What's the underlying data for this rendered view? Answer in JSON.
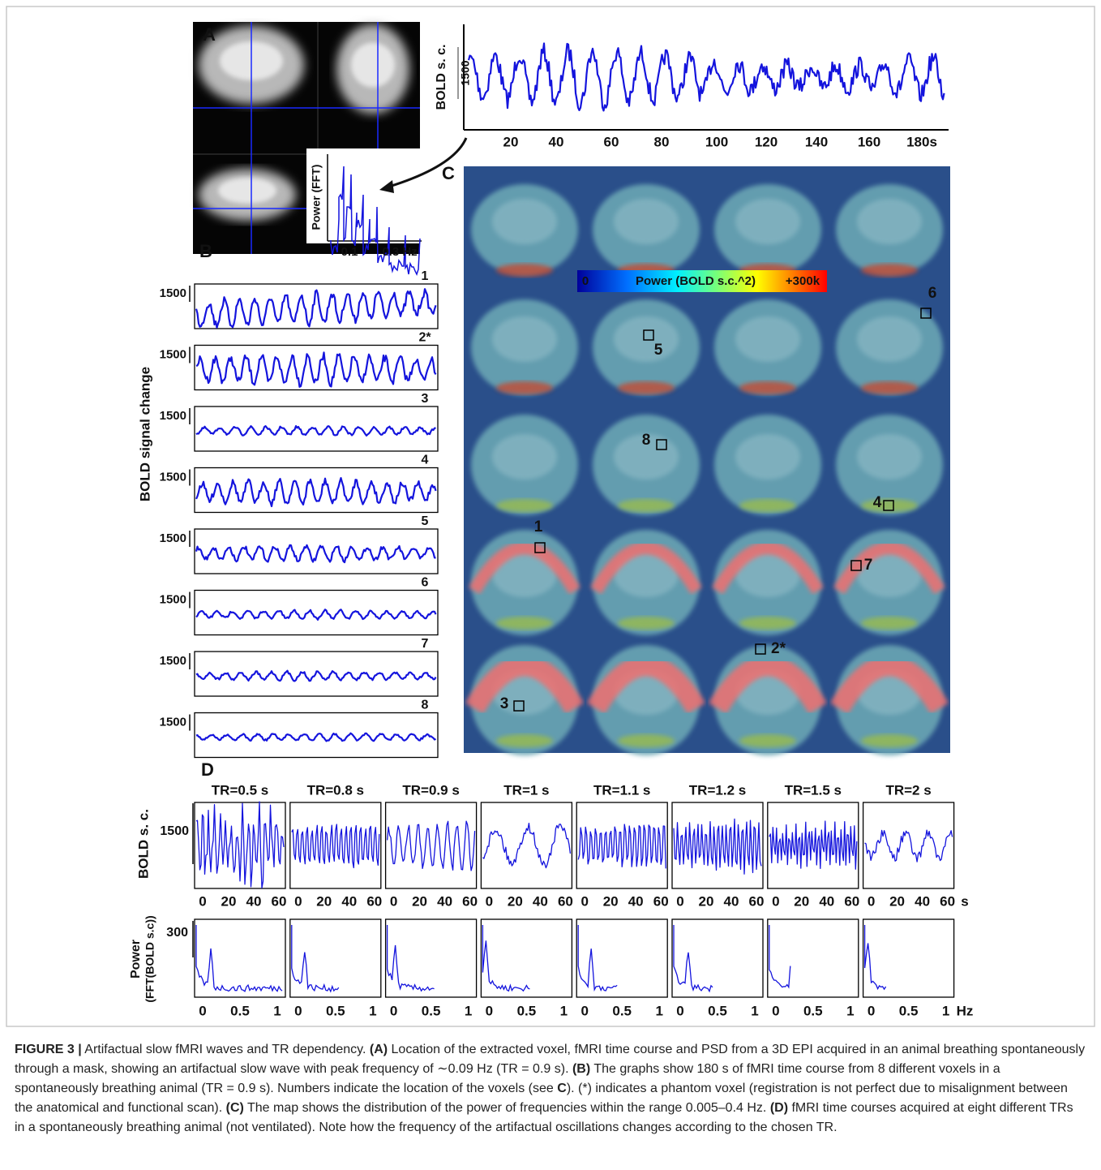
{
  "figure": {
    "A": {
      "label": "A",
      "inset_ylabel": "Power (FFT)",
      "inset_xticks": [
        "0.1",
        "0.3 Hz"
      ]
    },
    "timecourse": {
      "ylabel": "BOLD s. c.",
      "scale": "1500",
      "xticks": [
        "20",
        "40",
        "60",
        "80",
        "100",
        "120",
        "140",
        "160",
        "180s"
      ]
    },
    "B": {
      "label": "B",
      "ylabel": "BOLD signal change",
      "scale": "1500",
      "voxels": [
        "1",
        "2*",
        "3",
        "4",
        "5",
        "6",
        "7",
        "8"
      ]
    },
    "C": {
      "label": "C",
      "colorbar_min": "0",
      "colorbar_title": "Power (BOLD s.c.^2)",
      "colorbar_max": "+300k",
      "voxels": [
        "6",
        "5",
        "8",
        "4",
        "1",
        "7",
        "2*",
        "3"
      ]
    },
    "D": {
      "label": "D",
      "titles": [
        "TR=0.5 s",
        "TR=0.8 s",
        "TR=0.9 s",
        "TR=1 s",
        "TR=1.1 s",
        "TR=1.2 s",
        "TR=1.5 s",
        "TR=2 s"
      ],
      "bold_ylabel": "BOLD s. c.",
      "bold_scale": "1500",
      "time_ticks": [
        "0",
        "20",
        "40",
        "60"
      ],
      "time_unit": "s",
      "power_ylabel": [
        "Power",
        "(FFT(BOLD s.c))"
      ],
      "power_scale": "300",
      "freq_ticks": [
        "0",
        "0.5",
        "1"
      ],
      "freq_unit": "Hz"
    }
  },
  "caption": {
    "segments": [
      "FIGURE 3 |",
      " Artifactual slow fMRI waves and TR dependency. ",
      "(A)",
      " Location of the extracted voxel, fMRI time course and PSD from a 3D EPI acquired in an animal breathing spontaneously through a mask, showing an artifactual slow wave with peak frequency of ∼0.09 Hz (TR = 0.9 s). ",
      "(B)",
      " The graphs show 180 s of fMRI time course from 8 different voxels in a spontaneously breathing animal (TR = 0.9 s). Numbers indicate the location of the voxels (see ",
      "C",
      "). (*) indicates a phantom voxel (registration is not perfect due to misalignment between the anatomical and functional scan). ",
      "(C)",
      " The map shows the distribution of the power of frequencies within the range 0.005–0.4 Hz. ",
      "(D)",
      " fMRI time courses acquired at eight different TRs in a spontaneously breathing animal (not ventilated). Note how the frequency of the artifactual oscillations changes according to the chosen TR."
    ]
  }
}
